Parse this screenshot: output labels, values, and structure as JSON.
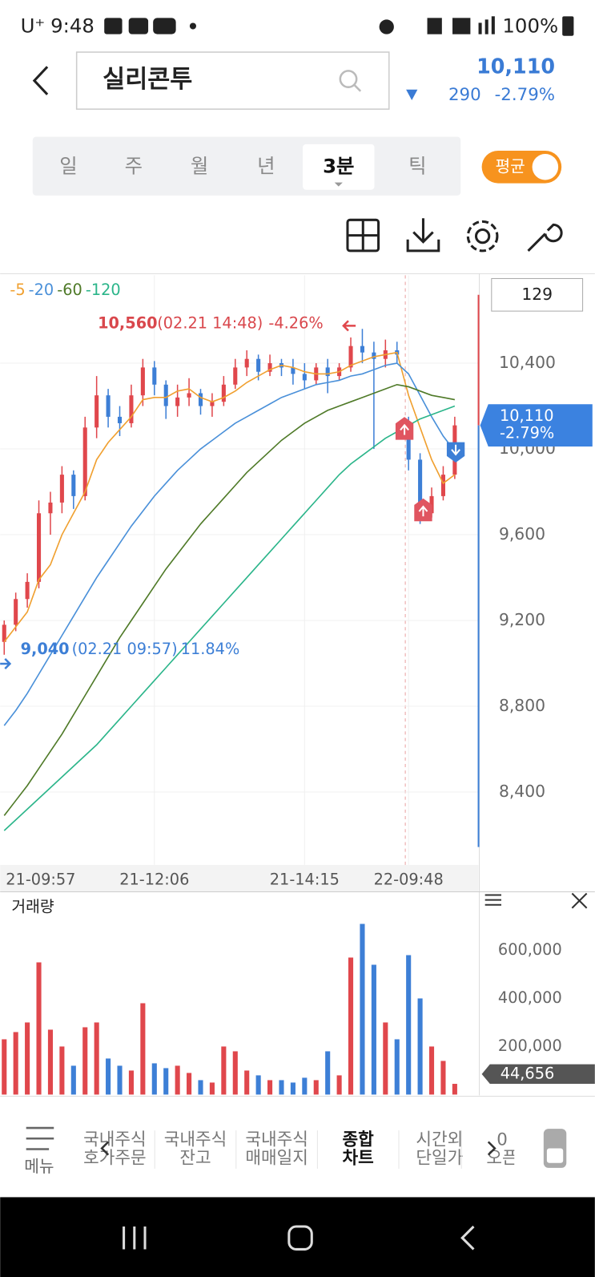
{
  "status_bar": {
    "carrier": "U⁺",
    "time": "9:48",
    "battery": "100%"
  },
  "header": {
    "search": "실리콘투",
    "price": "10,110",
    "change": "290",
    "change_pct": "-2.79%"
  },
  "period_tabs": {
    "items": [
      "일",
      "주",
      "월",
      "년",
      "3분",
      "틱"
    ],
    "selected": 4
  },
  "toggle": "평균",
  "count_box": "129",
  "chart_data": {
    "type": "candlestick",
    "up_color": "#e0474c",
    "down_color": "#3d7fd6",
    "categories": [
      "21-09:57",
      null,
      null,
      null,
      null,
      null,
      null,
      null,
      null,
      null,
      null,
      null,
      null,
      "21-12:06",
      null,
      null,
      null,
      null,
      null,
      null,
      null,
      null,
      null,
      null,
      null,
      null,
      "21-14:15",
      null,
      null,
      null,
      null,
      null,
      null,
      null,
      null,
      "22-09:48",
      null,
      null,
      null,
      null
    ],
    "ohlc": [
      [
        9100,
        9200,
        9040,
        9180
      ],
      [
        9180,
        9330,
        9150,
        9300
      ],
      [
        9300,
        9420,
        9260,
        9380
      ],
      [
        9380,
        9760,
        9350,
        9700
      ],
      [
        9700,
        9800,
        9600,
        9750
      ],
      [
        9750,
        9920,
        9700,
        9880
      ],
      [
        9880,
        9900,
        9720,
        9780
      ],
      [
        9780,
        10150,
        9760,
        10100
      ],
      [
        10100,
        10340,
        10050,
        10250
      ],
      [
        10250,
        10280,
        10100,
        10150
      ],
      [
        10150,
        10200,
        10060,
        10120
      ],
      [
        10120,
        10300,
        10100,
        10250
      ],
      [
        10250,
        10420,
        10200,
        10380
      ],
      [
        10380,
        10410,
        10250,
        10300
      ],
      [
        10300,
        10320,
        10140,
        10200
      ],
      [
        10200,
        10300,
        10150,
        10240
      ],
      [
        10240,
        10330,
        10200,
        10260
      ],
      [
        10260,
        10280,
        10160,
        10200
      ],
      [
        10200,
        10260,
        10150,
        10220
      ],
      [
        10220,
        10340,
        10200,
        10300
      ],
      [
        10300,
        10420,
        10280,
        10380
      ],
      [
        10380,
        10460,
        10340,
        10420
      ],
      [
        10420,
        10440,
        10320,
        10360
      ],
      [
        10360,
        10440,
        10340,
        10400
      ],
      [
        10400,
        10420,
        10340,
        10380
      ],
      [
        10380,
        10420,
        10300,
        10350
      ],
      [
        10350,
        10400,
        10280,
        10320
      ],
      [
        10320,
        10400,
        10300,
        10380
      ],
      [
        10380,
        10420,
        10260,
        10340
      ],
      [
        10340,
        10400,
        10320,
        10380
      ],
      [
        10380,
        10520,
        10360,
        10480
      ],
      [
        10480,
        10560,
        10400,
        10450
      ],
      [
        10450,
        10500,
        10000,
        10420
      ],
      [
        10420,
        10510,
        10380,
        10460
      ],
      [
        10460,
        10500,
        10400,
        10440
      ],
      [
        10100,
        10150,
        9900,
        9950
      ],
      [
        9950,
        9980,
        9650,
        9700
      ],
      [
        9700,
        9820,
        9680,
        9780
      ],
      [
        9780,
        9920,
        9760,
        9880
      ],
      [
        9880,
        10150,
        9860,
        10110
      ]
    ],
    "series": [
      {
        "name": "-5",
        "color": "#f0a030",
        "values": [
          9100,
          9170,
          9240,
          9390,
          9460,
          9600,
          9700,
          9800,
          9950,
          10030,
          10090,
          10150,
          10230,
          10240,
          10240,
          10270,
          10280,
          10240,
          10220,
          10240,
          10270,
          10310,
          10340,
          10370,
          10390,
          10380,
          10360,
          10350,
          10350,
          10360,
          10390,
          10410,
          10430,
          10440,
          10450,
          10250,
          10100,
          9950,
          9840,
          9880
        ]
      },
      {
        "name": "-20",
        "color": "#4a90d9",
        "values": [
          8710,
          8780,
          8860,
          8950,
          9040,
          9130,
          9220,
          9310,
          9400,
          9480,
          9560,
          9640,
          9710,
          9780,
          9840,
          9900,
          9950,
          10000,
          10040,
          10080,
          10120,
          10150,
          10180,
          10210,
          10240,
          10260,
          10280,
          10300,
          10310,
          10320,
          10340,
          10350,
          10370,
          10390,
          10400,
          10350,
          10250,
          10150,
          10060,
          9990
        ]
      },
      {
        "name": "-60",
        "color": "#4f7a28",
        "values": [
          8290,
          8360,
          8430,
          8510,
          8590,
          8670,
          8760,
          8850,
          8940,
          9030,
          9120,
          9200,
          9280,
          9360,
          9440,
          9510,
          9580,
          9650,
          9710,
          9770,
          9830,
          9890,
          9940,
          9990,
          10040,
          10080,
          10120,
          10150,
          10180,
          10200,
          10220,
          10240,
          10260,
          10280,
          10300,
          10290,
          10270,
          10250,
          10240,
          10230
        ]
      },
      {
        "name": "-120",
        "color": "#2bb58a",
        "values": [
          8220,
          8270,
          8320,
          8370,
          8420,
          8470,
          8520,
          8570,
          8620,
          8680,
          8740,
          8800,
          8860,
          8920,
          8980,
          9040,
          9100,
          9160,
          9220,
          9280,
          9340,
          9400,
          9460,
          9520,
          9580,
          9640,
          9700,
          9760,
          9820,
          9880,
          9930,
          9970,
          10010,
          10050,
          10080,
          10110,
          10140,
          10160,
          10180,
          10200
        ]
      }
    ],
    "ylim": [
      8060,
      10810
    ],
    "yticks": [
      {
        "value": 8400,
        "label": "8,400"
      },
      {
        "value": 8800,
        "label": "8,800"
      },
      {
        "value": 9200,
        "label": "9,200"
      },
      {
        "value": 9600,
        "label": "9,600"
      },
      {
        "value": 10000,
        "label": "10,000"
      },
      {
        "value": 10400,
        "label": "10,400"
      }
    ],
    "annotations": [
      {
        "value": 10560,
        "label": "10,560",
        "time": "(02.21 14:48)",
        "change": "-4.26%"
      },
      {
        "value": 9040,
        "label": "9,040",
        "time": "(02.21 09:57)",
        "change": "11.84%"
      }
    ],
    "price_tag": {
      "value": 10110,
      "label": "10,110",
      "change": "-2.79%"
    },
    "volume": {
      "title": "거래량",
      "values": [
        230000,
        260000,
        300000,
        550000,
        270000,
        200000,
        120000,
        280000,
        300000,
        150000,
        120000,
        100000,
        380000,
        130000,
        110000,
        120000,
        90000,
        60000,
        50000,
        200000,
        180000,
        100000,
        80000,
        60000,
        60000,
        50000,
        70000,
        60000,
        180000,
        80000,
        570000,
        710000,
        540000,
        300000,
        230000,
        580000,
        400000,
        200000,
        140000,
        44656
      ],
      "ylim": [
        0,
        725000
      ],
      "yticks": [
        {
          "value": 200000,
          "label": "200,000"
        },
        {
          "value": 400000,
          "label": "400,000"
        },
        {
          "value": 600000,
          "label": "600,000"
        }
      ],
      "last": {
        "value": 44656,
        "label": "44,656"
      }
    }
  },
  "bottom_nav": {
    "menu": "메뉴",
    "items": [
      [
        "국내주식",
        "호가주문"
      ],
      [
        "국내주식",
        "잔고"
      ],
      [
        "국내주식",
        "매매일지"
      ],
      [
        "종합",
        "차트"
      ],
      [
        "시간외",
        "단일가"
      ],
      [
        "0",
        "오픈"
      ]
    ],
    "selected": 3
  }
}
